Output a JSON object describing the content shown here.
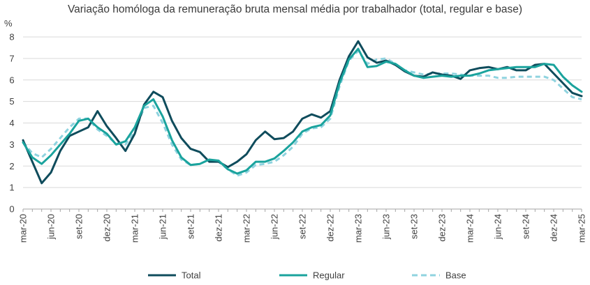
{
  "chart_data": {
    "type": "line",
    "title": "Variação homóloga da remuneração bruta mensal média por trabalhador (total, regular e base)",
    "ylabel": "%",
    "xlabel": "",
    "ylim": [
      0,
      8
    ],
    "yticks": [
      0,
      1,
      2,
      3,
      4,
      5,
      6,
      7,
      8
    ],
    "grid": "horizontal",
    "legend_position": "bottom",
    "x": [
      "mar-20",
      "abr-20",
      "mai-20",
      "jun-20",
      "jul-20",
      "ago-20",
      "set-20",
      "out-20",
      "nov-20",
      "dez-20",
      "jan-21",
      "fev-21",
      "mar-21",
      "abr-21",
      "mai-21",
      "jun-21",
      "jul-21",
      "ago-21",
      "set-21",
      "out-21",
      "nov-21",
      "dez-21",
      "jan-22",
      "fev-22",
      "mar-22",
      "abr-22",
      "mai-22",
      "jun-22",
      "jul-22",
      "ago-22",
      "set-22",
      "out-22",
      "nov-22",
      "dez-22",
      "jan-23",
      "fev-23",
      "mar-23",
      "abr-23",
      "mai-23",
      "jun-23",
      "jul-23",
      "ago-23",
      "set-23",
      "out-23",
      "nov-23",
      "dez-23",
      "jan-24",
      "fev-24",
      "mar-24",
      "abr-24",
      "mai-24",
      "jun-24",
      "jul-24",
      "ago-24",
      "set-24",
      "out-24",
      "nov-24",
      "dez-24",
      "jan-25",
      "fev-25",
      "mar-25"
    ],
    "tick_labels": [
      "mar-20",
      "jun-20",
      "set-20",
      "dez-20",
      "mar-21",
      "jun-21",
      "set-21",
      "dez-21",
      "mar-22",
      "jun-22",
      "set-22",
      "dez-22",
      "mar-23",
      "jun-23",
      "set-23",
      "dez-23",
      "mar-24",
      "jun-24",
      "set-24",
      "dez-24",
      "mar-25"
    ],
    "series": [
      {
        "name": "Total",
        "color": "#0f4c5c",
        "dash": "solid",
        "values": [
          3.2,
          2.2,
          1.2,
          1.7,
          2.7,
          3.4,
          3.6,
          3.8,
          4.55,
          3.85,
          3.3,
          2.7,
          3.5,
          4.85,
          5.45,
          5.2,
          4.1,
          3.3,
          2.8,
          2.65,
          2.2,
          2.2,
          1.95,
          2.2,
          2.55,
          3.2,
          3.6,
          3.25,
          3.3,
          3.6,
          4.2,
          4.4,
          4.25,
          4.55,
          6.0,
          7.1,
          7.8,
          7.05,
          6.8,
          6.9,
          6.7,
          6.4,
          6.2,
          6.15,
          6.35,
          6.25,
          6.2,
          6.05,
          6.45,
          6.55,
          6.6,
          6.5,
          6.6,
          6.45,
          6.45,
          6.7,
          6.75,
          6.3,
          5.85,
          5.4,
          5.25
        ]
      },
      {
        "name": "Regular",
        "color": "#1aa39d",
        "dash": "solid",
        "values": [
          3.1,
          2.4,
          2.1,
          2.5,
          3.0,
          3.5,
          4.1,
          4.2,
          3.8,
          3.5,
          3.0,
          3.15,
          3.8,
          4.8,
          5.1,
          4.3,
          3.2,
          2.4,
          2.05,
          2.1,
          2.3,
          2.25,
          1.85,
          1.65,
          1.8,
          2.2,
          2.2,
          2.35,
          2.7,
          3.1,
          3.6,
          3.8,
          3.9,
          4.35,
          5.85,
          6.95,
          7.45,
          6.6,
          6.65,
          6.85,
          6.75,
          6.45,
          6.2,
          6.1,
          6.15,
          6.2,
          6.15,
          6.2,
          6.2,
          6.3,
          6.45,
          6.5,
          6.55,
          6.6,
          6.6,
          6.6,
          6.75,
          6.7,
          6.15,
          5.75,
          5.45
        ]
      },
      {
        "name": "Base",
        "color": "#8fd3df",
        "dash": "dashed",
        "values": [
          3.1,
          2.6,
          2.4,
          2.8,
          3.3,
          3.8,
          4.2,
          4.2,
          3.7,
          3.4,
          3.05,
          3.0,
          3.6,
          4.7,
          4.8,
          4.0,
          3.0,
          2.3,
          2.05,
          2.1,
          2.3,
          2.2,
          1.85,
          1.55,
          1.7,
          2.05,
          2.1,
          2.2,
          2.5,
          2.9,
          3.5,
          3.75,
          3.8,
          4.2,
          5.7,
          6.9,
          7.35,
          6.75,
          6.95,
          7.0,
          6.75,
          6.45,
          6.35,
          6.25,
          6.3,
          6.3,
          6.3,
          6.25,
          6.2,
          6.2,
          6.2,
          6.1,
          6.1,
          6.15,
          6.15,
          6.15,
          6.15,
          6.0,
          5.6,
          5.2,
          5.1
        ]
      }
    ]
  }
}
